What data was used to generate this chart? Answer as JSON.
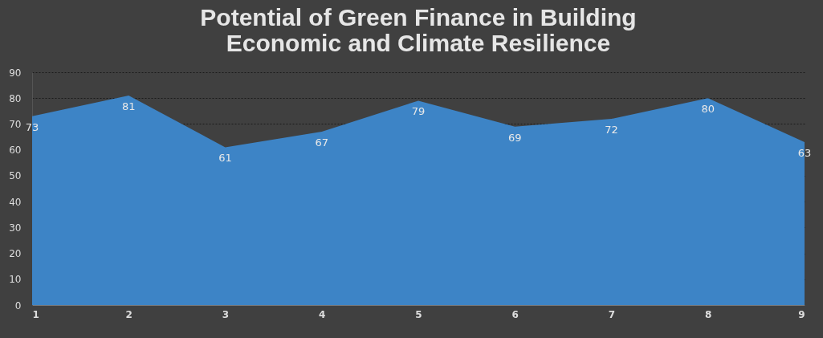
{
  "chart_data": {
    "type": "area",
    "title": "Potential of Green Finance in Building Economic and Climate Resilience",
    "categories": [
      "1",
      "2",
      "3",
      "4",
      "5",
      "6",
      "7",
      "8",
      "9"
    ],
    "values": [
      73,
      81,
      61,
      67,
      79,
      69,
      72,
      80,
      63
    ],
    "color": "#3d84c6",
    "ylim": [
      0,
      90
    ],
    "yticks": [
      0,
      10,
      20,
      30,
      40,
      50,
      60,
      70,
      80,
      90
    ],
    "grid": "y",
    "data_labels": true
  }
}
